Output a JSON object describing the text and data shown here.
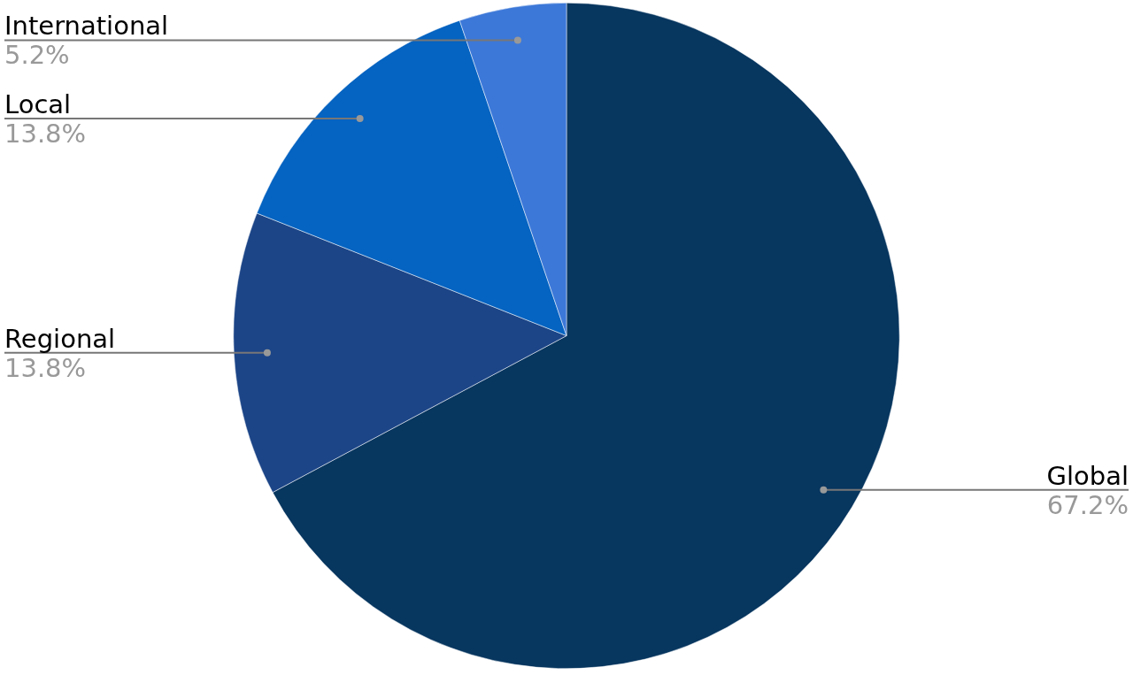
{
  "chart_data": {
    "type": "pie",
    "categories": [
      "Global",
      "Regional",
      "Local",
      "International"
    ],
    "values": [
      67.2,
      13.8,
      13.8,
      5.2
    ],
    "colors": [
      "#07365f",
      "#1c4587",
      "#0563c1",
      "#3c78d8"
    ],
    "value_labels": [
      "67.2%",
      "13.8%",
      "13.8%",
      "5.2%"
    ]
  }
}
